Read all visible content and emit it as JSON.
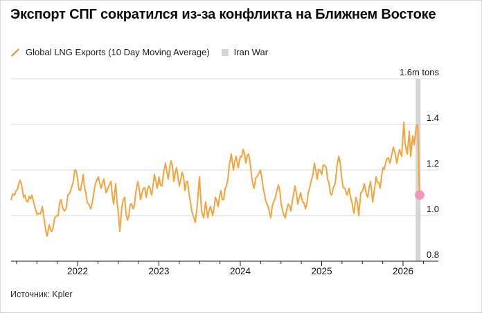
{
  "chart_data": {
    "type": "line",
    "title": "Экспорт СПГ сократился из-за конфликта на Ближнем Востоке",
    "source": "Источник: Kpler",
    "legend": [
      {
        "label": "Global LNG Exports (10 Day Moving Average)",
        "marker": "line-slash-icon",
        "color": "#d2a158"
      },
      {
        "label": "Iran War",
        "marker": "band-square-icon",
        "color": "#d5d5d5"
      }
    ],
    "ylim": [
      0.8,
      1.6
    ],
    "y_ticks": [
      1.6,
      1.4,
      1.2,
      1.0,
      0.8
    ],
    "y_tick_labels": [
      "1.6m tons",
      "1.4",
      "1.2",
      "1.0",
      "0.8"
    ],
    "x_range": [
      2021.18,
      2026.43
    ],
    "x_ticks_major": [
      2022,
      2023,
      2024,
      2025,
      2026
    ],
    "x_tick_labels": [
      "2022",
      "2023",
      "2024",
      "2025",
      "2026"
    ],
    "x_minor_interval_years": 0.25,
    "grid": "horizontal",
    "legend_position": "top-left",
    "band": {
      "label": "Iran War",
      "from": 2026.155,
      "to": 2026.215,
      "color": "#d5d5d5"
    },
    "end_marker": {
      "x": 2026.204,
      "y": 1.09,
      "color": "#f094b8"
    },
    "colors": {
      "line": "#f7a33b",
      "grid": "#d8d8d8",
      "axis": "#1a1a1a",
      "label": "#111111"
    },
    "series": [
      {
        "name": "Global LNG Exports (10 Day Moving Average)",
        "unit": "m tons",
        "points": [
          [
            2021.183,
            1.07
          ],
          [
            2021.226,
            1.09
          ],
          [
            2021.294,
            1.155
          ],
          [
            2021.336,
            1.08
          ],
          [
            2021.37,
            1.065
          ],
          [
            2021.438,
            1.09
          ],
          [
            2021.481,
            1.03
          ],
          [
            2021.523,
            1.01
          ],
          [
            2021.566,
            1.04
          ],
          [
            2021.591,
            0.98
          ],
          [
            2021.626,
            0.91
          ],
          [
            2021.651,
            0.96
          ],
          [
            2021.685,
            0.93
          ],
          [
            2021.719,
            0.99
          ],
          [
            2021.762,
            1.0
          ],
          [
            2021.796,
            1.07
          ],
          [
            2021.838,
            1.02
          ],
          [
            2021.881,
            1.09
          ],
          [
            2021.923,
            1.12
          ],
          [
            2021.966,
            1.2
          ],
          [
            2022.0,
            1.16
          ],
          [
            2022.034,
            1.11
          ],
          [
            2022.068,
            1.18
          ],
          [
            2022.102,
            1.1
          ],
          [
            2022.136,
            1.05
          ],
          [
            2022.162,
            1.03
          ],
          [
            2022.196,
            1.09
          ],
          [
            2022.23,
            1.15
          ],
          [
            2022.255,
            1.17
          ],
          [
            2022.289,
            1.12
          ],
          [
            2022.323,
            1.16
          ],
          [
            2022.349,
            1.1
          ],
          [
            2022.374,
            1.12
          ],
          [
            2022.409,
            1.15
          ],
          [
            2022.443,
            1.05
          ],
          [
            2022.468,
            1.14
          ],
          [
            2022.502,
            1.01
          ],
          [
            2022.519,
            0.93
          ],
          [
            2022.545,
            1.04
          ],
          [
            2022.579,
            1.08
          ],
          [
            2022.613,
            0.98
          ],
          [
            2022.647,
            1.05
          ],
          [
            2022.681,
            1.03
          ],
          [
            2022.715,
            1.1
          ],
          [
            2022.74,
            1.15
          ],
          [
            2022.774,
            1.07
          ],
          [
            2022.809,
            1.12
          ],
          [
            2022.843,
            1.08
          ],
          [
            2022.877,
            1.13
          ],
          [
            2022.911,
            1.09
          ],
          [
            2022.945,
            1.18
          ],
          [
            2022.979,
            1.12
          ],
          [
            2023.0,
            1.17
          ],
          [
            2023.038,
            1.13
          ],
          [
            2023.081,
            1.23
          ],
          [
            2023.115,
            1.16
          ],
          [
            2023.149,
            1.24
          ],
          [
            2023.183,
            1.15
          ],
          [
            2023.217,
            1.21
          ],
          [
            2023.251,
            1.13
          ],
          [
            2023.285,
            1.19
          ],
          [
            2023.319,
            1.11
          ],
          [
            2023.353,
            1.15
          ],
          [
            2023.387,
            1.06
          ],
          [
            2023.421,
            1.0
          ],
          [
            2023.447,
            0.97
          ],
          [
            2023.472,
            1.05
          ],
          [
            2023.498,
            1.17
          ],
          [
            2023.523,
            1.02
          ],
          [
            2023.549,
            0.99
          ],
          [
            2023.574,
            1.06
          ],
          [
            2023.6,
            0.99
          ],
          [
            2023.634,
            1.04
          ],
          [
            2023.66,
            1.0
          ],
          [
            2023.694,
            1.08
          ],
          [
            2023.728,
            1.04
          ],
          [
            2023.762,
            1.11
          ],
          [
            2023.796,
            1.07
          ],
          [
            2023.83,
            1.13
          ],
          [
            2023.864,
            1.22
          ],
          [
            2023.889,
            1.27
          ],
          [
            2023.915,
            1.2
          ],
          [
            2023.949,
            1.26
          ],
          [
            2023.974,
            1.21
          ],
          [
            2024.0,
            1.26
          ],
          [
            2024.034,
            1.29
          ],
          [
            2024.068,
            1.23
          ],
          [
            2024.102,
            1.27
          ],
          [
            2024.136,
            1.18
          ],
          [
            2024.17,
            1.12
          ],
          [
            2024.204,
            1.17
          ],
          [
            2024.247,
            1.2
          ],
          [
            2024.281,
            1.12
          ],
          [
            2024.315,
            1.06
          ],
          [
            2024.349,
            1.03
          ],
          [
            2024.374,
            0.99
          ],
          [
            2024.409,
            1.06
          ],
          [
            2024.443,
            1.1
          ],
          [
            2024.468,
            1.135
          ],
          [
            2024.502,
            1.05
          ],
          [
            2024.528,
            1.01
          ],
          [
            2024.553,
            0.99
          ],
          [
            2024.587,
            1.05
          ],
          [
            2024.621,
            1.02
          ],
          [
            2024.647,
            1.08
          ],
          [
            2024.672,
            1.13
          ],
          [
            2024.706,
            1.05
          ],
          [
            2024.74,
            1.1
          ],
          [
            2024.766,
            1.06
          ],
          [
            2024.8,
            1.03
          ],
          [
            2024.834,
            1.1
          ],
          [
            2024.868,
            1.15
          ],
          [
            2024.911,
            1.23
          ],
          [
            2024.945,
            1.16
          ],
          [
            2024.979,
            1.2
          ],
          [
            2025.0,
            1.18
          ],
          [
            2025.038,
            1.22
          ],
          [
            2025.072,
            1.16
          ],
          [
            2025.123,
            1.09
          ],
          [
            2025.166,
            1.14
          ],
          [
            2025.209,
            1.26
          ],
          [
            2025.243,
            1.17
          ],
          [
            2025.285,
            1.12
          ],
          [
            2025.311,
            1.09
          ],
          [
            2025.336,
            1.12
          ],
          [
            2025.37,
            1.06
          ],
          [
            2025.396,
            1.01
          ],
          [
            2025.421,
            1.08
          ],
          [
            2025.455,
            1.0
          ],
          [
            2025.481,
            1.1
          ],
          [
            2025.523,
            1.14
          ],
          [
            2025.566,
            1.08
          ],
          [
            2025.6,
            1.15
          ],
          [
            2025.626,
            1.06
          ],
          [
            2025.668,
            1.17
          ],
          [
            2025.719,
            1.12
          ],
          [
            2025.753,
            1.21
          ],
          [
            2025.804,
            1.25
          ],
          [
            2025.838,
            1.23
          ],
          [
            2025.881,
            1.3
          ],
          [
            2025.923,
            1.23
          ],
          [
            2025.957,
            1.29
          ],
          [
            2025.983,
            1.26
          ],
          [
            2026.009,
            1.41
          ],
          [
            2026.026,
            1.31
          ],
          [
            2026.051,
            1.27
          ],
          [
            2026.077,
            1.37
          ],
          [
            2026.094,
            1.26
          ],
          [
            2026.119,
            1.35
          ],
          [
            2026.136,
            1.31
          ],
          [
            2026.162,
            1.39
          ],
          [
            2026.179,
            1.4
          ],
          [
            2026.191,
            1.28
          ],
          [
            2026.197,
            1.15
          ],
          [
            2026.204,
            1.09
          ]
        ]
      }
    ]
  }
}
